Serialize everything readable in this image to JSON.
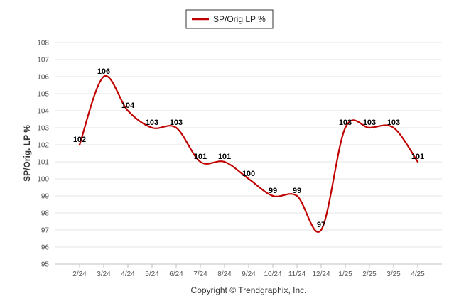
{
  "chart_data": {
    "type": "line",
    "categories": [
      "2/24",
      "3/24",
      "4/24",
      "5/24",
      "6/24",
      "7/24",
      "8/24",
      "9/24",
      "10/24",
      "11/24",
      "12/24",
      "1/25",
      "2/25",
      "3/25",
      "4/25"
    ],
    "series": [
      {
        "name": "SP/Orig LP %",
        "values": [
          102,
          106,
          104,
          103,
          103,
          101,
          101,
          100,
          99,
          99,
          97,
          103,
          103,
          103,
          101
        ],
        "color": "#c00000"
      }
    ],
    "data_labels": [
      "102",
      "106",
      "104",
      "103",
      "103",
      "101",
      "101",
      "100",
      "99",
      "99",
      "97",
      "103",
      "103",
      "103",
      "101"
    ],
    "title": "",
    "xlabel": "",
    "ylabel": "SP/Orig. LP %",
    "ylim": [
      95,
      108
    ],
    "yticks": [
      95,
      96,
      97,
      98,
      99,
      100,
      101,
      102,
      103,
      104,
      105,
      106,
      107,
      108
    ],
    "grid": true,
    "legend": "top-center",
    "line_style": "smooth"
  },
  "footer": {
    "copyright": "Copyright © Trendgraphix, Inc."
  }
}
